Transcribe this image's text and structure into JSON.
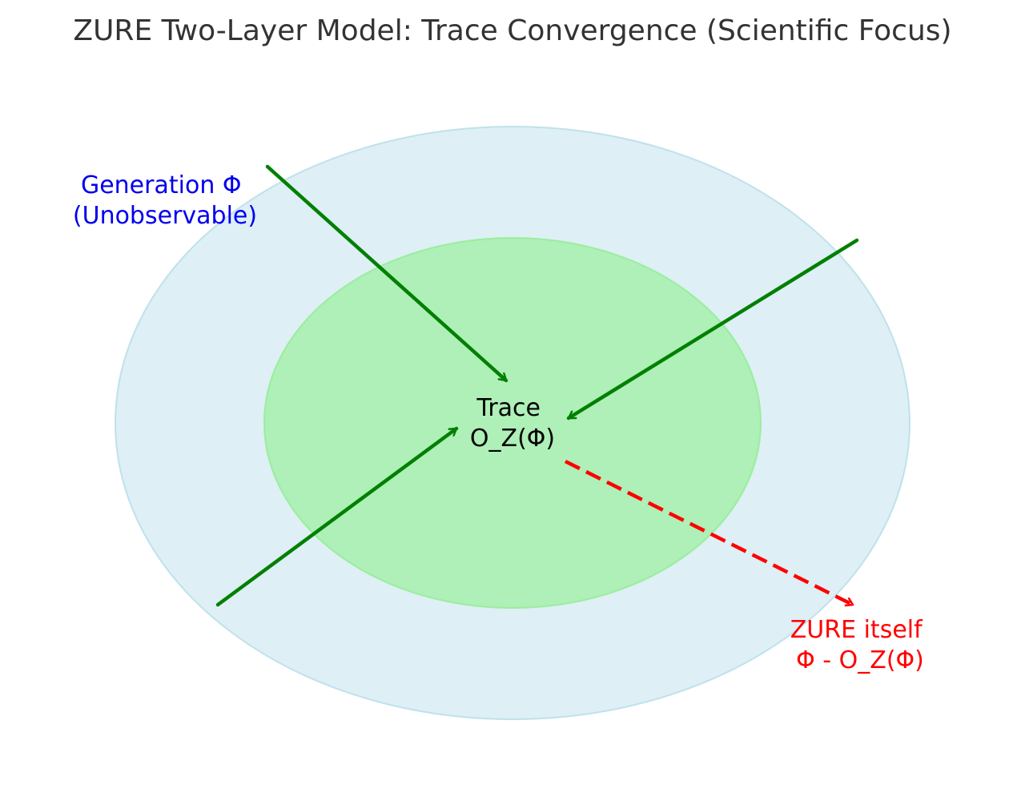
{
  "title": "ZURE Two-Layer Model: Trace Convergence (Scientific Focus)",
  "colors": {
    "outer_fill": "#add8e6",
    "inner_fill": "#90ee90",
    "arrow_green": "#008000",
    "arrow_red": "#ff0000",
    "label_blue": "#0000ee",
    "label_red": "#ff0000",
    "title": "#333333"
  },
  "layers": {
    "outer": {
      "name": "generation-layer"
    },
    "inner": {
      "name": "trace-layer"
    }
  },
  "labels": {
    "generation": {
      "line1": "Generation Φ",
      "line2": "(Unobservable)"
    },
    "trace": {
      "line1": "Trace",
      "line2": "O_Z(Φ)"
    },
    "zure": {
      "line1": "ZURE itself",
      "line2": "Φ - O_Z(Φ)"
    }
  }
}
